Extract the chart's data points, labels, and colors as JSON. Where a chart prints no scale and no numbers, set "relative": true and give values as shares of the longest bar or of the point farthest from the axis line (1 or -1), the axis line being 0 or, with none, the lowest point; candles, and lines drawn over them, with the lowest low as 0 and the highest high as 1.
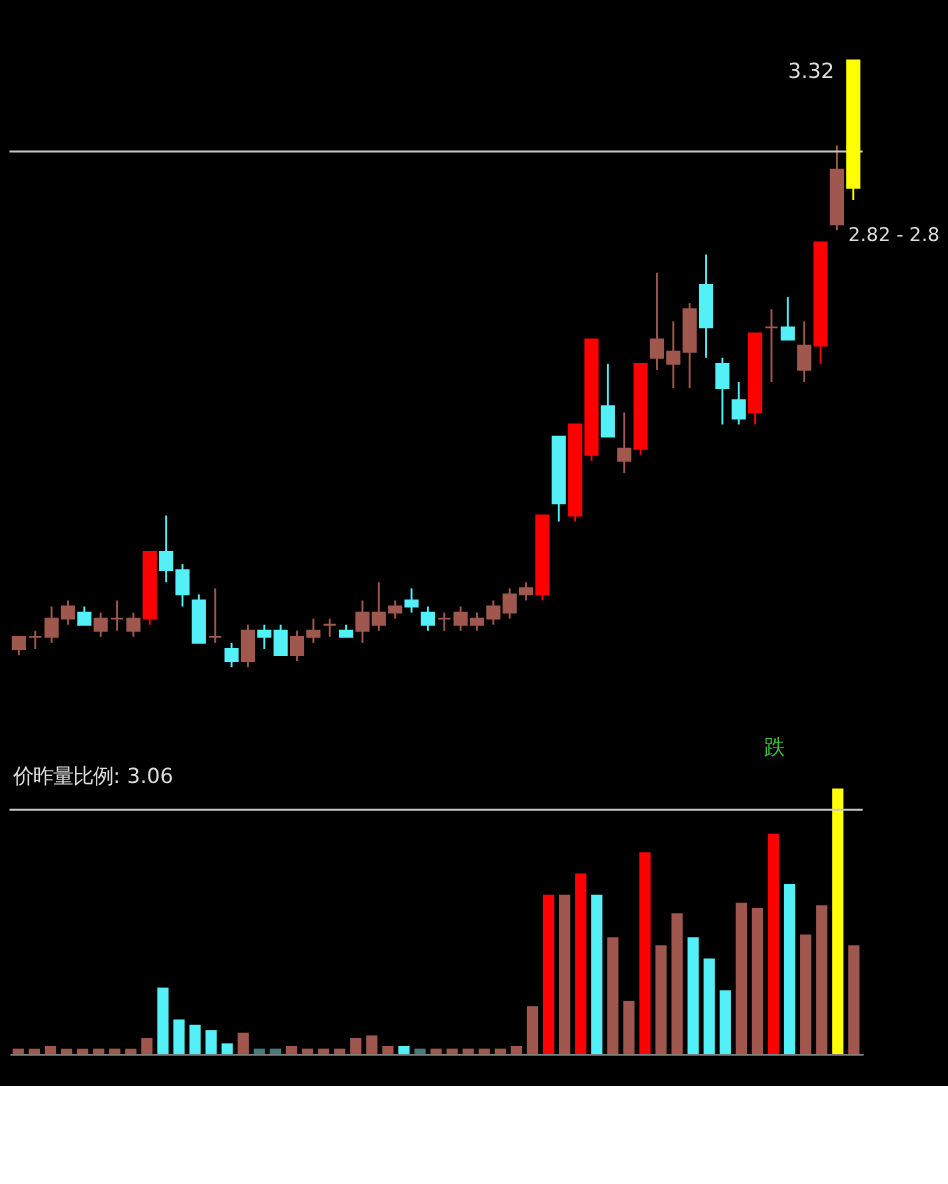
{
  "chart_data": [
    {
      "type": "candlestick",
      "relative": true,
      "tick_labels": false,
      "categories": [
        null,
        null,
        null,
        null,
        null,
        null,
        null,
        null,
        null,
        null,
        null,
        null,
        null,
        null,
        null,
        null,
        null,
        null,
        null,
        null,
        null,
        null,
        null,
        null,
        null,
        null,
        null,
        null,
        null,
        null,
        null,
        null,
        null,
        null,
        null,
        null,
        null,
        null,
        null,
        null,
        null,
        null,
        null,
        null,
        null,
        null,
        null,
        null,
        null,
        null,
        null,
        null
      ],
      "ohlc": [
        [
          0.03,
          0.05,
          0.02,
          0.05
        ],
        [
          0.05,
          0.06,
          0.03,
          0.05
        ],
        [
          0.05,
          0.1,
          0.04,
          0.08
        ],
        [
          0.08,
          0.11,
          0.07,
          0.1
        ],
        [
          0.09,
          0.1,
          0.07,
          0.07
        ],
        [
          0.06,
          0.09,
          0.05,
          0.08
        ],
        [
          0.08,
          0.11,
          0.06,
          0.08
        ],
        [
          0.06,
          0.09,
          0.05,
          0.08
        ],
        [
          0.08,
          0.19,
          0.07,
          0.19
        ],
        [
          0.19,
          0.25,
          0.14,
          0.16
        ],
        [
          0.16,
          0.17,
          0.1,
          0.12
        ],
        [
          0.11,
          0.12,
          0.04,
          0.04
        ],
        [
          0.05,
          0.13,
          0.04,
          0.05
        ],
        [
          0.03,
          0.04,
          0,
          0.01
        ],
        [
          0.01,
          0.07,
          0,
          0.06
        ],
        [
          0.06,
          0.07,
          0.03,
          0.05
        ],
        [
          0.06,
          0.07,
          0.02,
          0.02
        ],
        [
          0.02,
          0.06,
          0.01,
          0.05
        ],
        [
          0.05,
          0.08,
          0.04,
          0.06
        ],
        [
          0.07,
          0.08,
          0.05,
          0.07
        ],
        [
          0.06,
          0.07,
          0.05,
          0.05
        ],
        [
          0.06,
          0.11,
          0.04,
          0.09
        ],
        [
          0.07,
          0.14,
          0.06,
          0.09
        ],
        [
          0.09,
          0.11,
          0.08,
          0.1
        ],
        [
          0.11,
          0.13,
          0.09,
          0.1
        ],
        [
          0.09,
          0.1,
          0.06,
          0.07
        ],
        [
          0.08,
          0.09,
          0.06,
          0.08
        ],
        [
          0.07,
          0.1,
          0.06,
          0.09
        ],
        [
          0.07,
          0.09,
          0.06,
          0.08
        ],
        [
          0.08,
          0.11,
          0.07,
          0.1
        ],
        [
          0.09,
          0.13,
          0.08,
          0.12
        ],
        [
          0.12,
          0.14,
          0.11,
          0.13
        ],
        [
          0.12,
          0.25,
          0.11,
          0.25
        ],
        [
          0.38,
          0.38,
          0.24,
          0.27
        ],
        [
          0.25,
          0.4,
          0.24,
          0.4
        ],
        [
          0.35,
          0.54,
          0.34,
          0.54
        ],
        [
          0.43,
          0.5,
          0.38,
          0.38
        ],
        [
          0.34,
          0.42,
          0.32,
          0.36
        ],
        [
          0.36,
          0.5,
          0.35,
          0.5
        ],
        [
          0.51,
          0.65,
          0.49,
          0.54
        ],
        [
          0.5,
          0.57,
          0.46,
          0.52
        ],
        [
          0.52,
          0.6,
          0.46,
          0.59
        ],
        [
          0.63,
          0.68,
          0.51,
          0.56
        ],
        [
          0.5,
          0.51,
          0.4,
          0.46
        ],
        [
          0.44,
          0.47,
          0.4,
          0.41
        ],
        [
          0.42,
          0.55,
          0.4,
          0.55
        ],
        [
          0.56,
          0.59,
          0.47,
          0.56
        ],
        [
          0.56,
          0.61,
          0.54,
          0.54
        ],
        [
          0.49,
          0.57,
          0.47,
          0.53
        ],
        [
          0.53,
          0.7,
          0.5,
          0.7
        ],
        [
          0.73,
          0.86,
          0.72,
          0.82
        ],
        [
          0.79,
          1,
          0.77,
          1
        ]
      ],
      "colors": [
        "#a0584e",
        "#a0584e",
        "#a0584e",
        "#a0584e",
        "#54f0f8",
        "#a0584e",
        "#a0584e",
        "#a0584e",
        "#ff0000",
        "#54f0f8",
        "#54f0f8",
        "#54f0f8",
        "#a0584e",
        "#54f0f8",
        "#a0584e",
        "#54f0f8",
        "#54f0f8",
        "#a0584e",
        "#a0584e",
        "#a0584e",
        "#54f0f8",
        "#a0584e",
        "#a0584e",
        "#a0584e",
        "#54f0f8",
        "#54f0f8",
        "#a0584e",
        "#a0584e",
        "#a0584e",
        "#a0584e",
        "#a0584e",
        "#a0584e",
        "#ff0000",
        "#54f0f8",
        "#ff0000",
        "#ff0000",
        "#54f0f8",
        "#a0584e",
        "#ff0000",
        "#a0584e",
        "#a0584e",
        "#a0584e",
        "#54f0f8",
        "#54f0f8",
        "#54f0f8",
        "#ff0000",
        "#a0584e",
        "#54f0f8",
        "#a0584e",
        "#ff0000",
        "#a0584e",
        "#ffff00"
      ],
      "ref_lines": [
        {
          "axis": "y",
          "value": 0.85,
          "color": "#c8c8c8",
          "line_style": "solid"
        }
      ],
      "annotations": [
        "3.32",
        "2.82 - 2.8"
      ]
    },
    {
      "type": "bar",
      "relative": true,
      "tick_labels": false,
      "categories": [
        null,
        null,
        null,
        null,
        null,
        null,
        null,
        null,
        null,
        null,
        null,
        null,
        null,
        null,
        null,
        null,
        null,
        null,
        null,
        null,
        null,
        null,
        null,
        null,
        null,
        null,
        null,
        null,
        null,
        null,
        null,
        null,
        null,
        null,
        null,
        null,
        null,
        null,
        null,
        null,
        null,
        null,
        null,
        null,
        null,
        null,
        null,
        null,
        null,
        null,
        null,
        null,
        null
      ],
      "values": [
        0.02,
        0.02,
        0.03,
        0.02,
        0.02,
        0.02,
        0.02,
        0.02,
        0.06,
        0.25,
        0.13,
        0.11,
        0.09,
        0.04,
        0.08,
        0.02,
        0.02,
        0.03,
        0.02,
        0.02,
        0.02,
        0.06,
        0.07,
        0.03,
        0.03,
        0.02,
        0.02,
        0.02,
        0.02,
        0.02,
        0.02,
        0.03,
        0.18,
        0.6,
        0.6,
        0.68,
        0.6,
        0.44,
        0.2,
        0.76,
        0.41,
        0.53,
        0.44,
        0.36,
        0.24,
        0.57,
        0.55,
        0.83,
        0.64,
        0.45,
        0.56,
        1,
        0.41
      ],
      "colors": [
        "#a0584e",
        "#a0584e",
        "#a0584e",
        "#a0584e",
        "#a0584e",
        "#a0584e",
        "#a0584e",
        "#a0584e",
        "#a0584e",
        "#54f0f8",
        "#54f0f8",
        "#54f0f8",
        "#54f0f8",
        "#54f0f8",
        "#a0584e",
        "#4a7a7a",
        "#4a7a7a",
        "#a0584e",
        "#a0584e",
        "#a0584e",
        "#a0584e",
        "#a0584e",
        "#a0584e",
        "#a0584e",
        "#54f0f8",
        "#4a7a7a",
        "#a0584e",
        "#a0584e",
        "#a0584e",
        "#a0584e",
        "#a0584e",
        "#a0584e",
        "#a0584e",
        "#ff0000",
        "#a0584e",
        "#ff0000",
        "#54f0f8",
        "#a0584e",
        "#a0584e",
        "#ff0000",
        "#a0584e",
        "#a0584e",
        "#54f0f8",
        "#54f0f8",
        "#54f0f8",
        "#a0584e",
        "#a0584e",
        "#ff0000",
        "#54f0f8",
        "#a0584e",
        "#a0584e",
        "#ffff00",
        "#a0584e"
      ],
      "ref_lines": [
        {
          "axis": "y",
          "value": 0.92,
          "color": "#c8c8c8",
          "line_style": "solid"
        }
      ],
      "annotations": [
        "价昨量比例: 3.06",
        "跌"
      ]
    }
  ]
}
